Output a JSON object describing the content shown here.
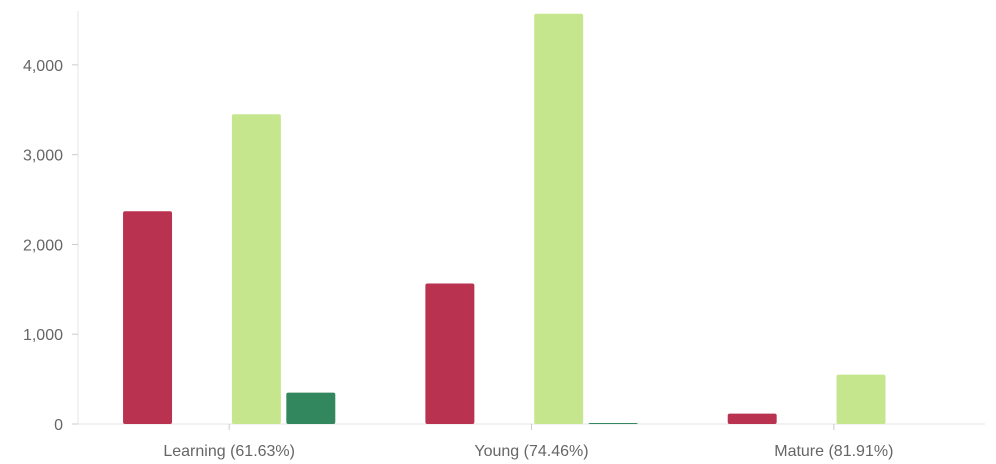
{
  "chart_data": {
    "type": "bar",
    "title": "",
    "xlabel": "",
    "ylabel": "",
    "categories": [
      "Learning (61.63%)",
      "Young (74.46%)",
      "Mature (81.91%)"
    ],
    "series": [
      {
        "color": "#b93250",
        "values": [
          2370,
          1565,
          115
        ]
      },
      {
        "color": "#f5a53a",
        "values": [
          0,
          0,
          0
        ]
      },
      {
        "color": "#c6e68e",
        "values": [
          3450,
          4570,
          550
        ]
      },
      {
        "color": "#33875f",
        "values": [
          350,
          10,
          0
        ]
      }
    ],
    "ylim": [
      0,
      4600
    ],
    "yticks": [
      0,
      1000,
      2000,
      3000,
      4000
    ],
    "ytick_labels": [
      "0",
      "1,000",
      "2,000",
      "3,000",
      "4,000"
    ],
    "grid": false,
    "legend": "none"
  }
}
